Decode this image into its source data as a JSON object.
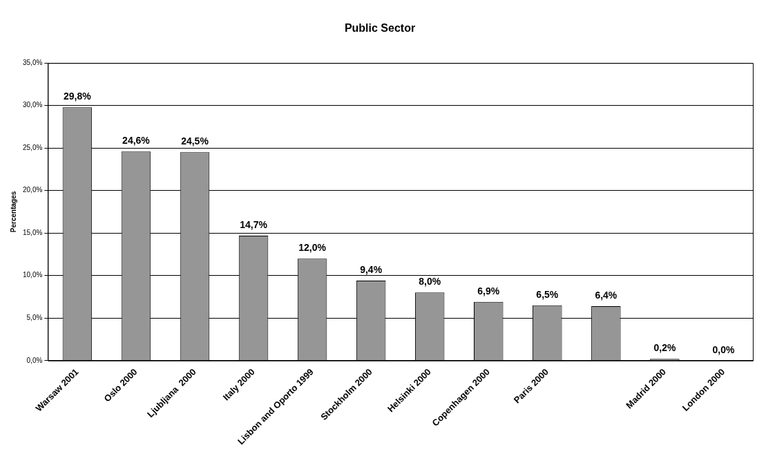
{
  "chart_data": {
    "type": "bar",
    "title": "Public Sector",
    "ylabel": "Percentages",
    "categories": [
      "Warsaw 2001",
      "Oslo 2000",
      "Ljubljana  2000",
      "Italy 2000",
      "Lisbon and Oporto 1999",
      "Stockholm 2000",
      "Helsinki 2000",
      "Copenhagen 2000",
      "Paris 2000",
      null,
      "Madrid 2000",
      "London 2000"
    ],
    "values": [
      29.8,
      24.6,
      24.5,
      14.7,
      12.0,
      9.4,
      8.0,
      6.9,
      6.5,
      6.4,
      0.2,
      0.0
    ],
    "value_labels": [
      "29,8%",
      "24,6%",
      "24,5%",
      "14,7%",
      "12,0%",
      "9,4%",
      "8,0%",
      "6,9%",
      "6,5%",
      "6,4%",
      "0,2%",
      "0,0%"
    ],
    "color": "#969696",
    "ylim": [
      0,
      35
    ],
    "yticks": [
      {
        "value": 0,
        "label": "0,0%"
      },
      {
        "value": 5,
        "label": "5,0%"
      },
      {
        "value": 10,
        "label": "10,0%"
      },
      {
        "value": 15,
        "label": "15,0%"
      },
      {
        "value": 20,
        "label": "20,0%"
      },
      {
        "value": 25,
        "label": "25,0%"
      },
      {
        "value": 30,
        "label": "30,0%"
      },
      {
        "value": 35,
        "label": "35,0%"
      }
    ],
    "grid": "y",
    "legend": false
  }
}
